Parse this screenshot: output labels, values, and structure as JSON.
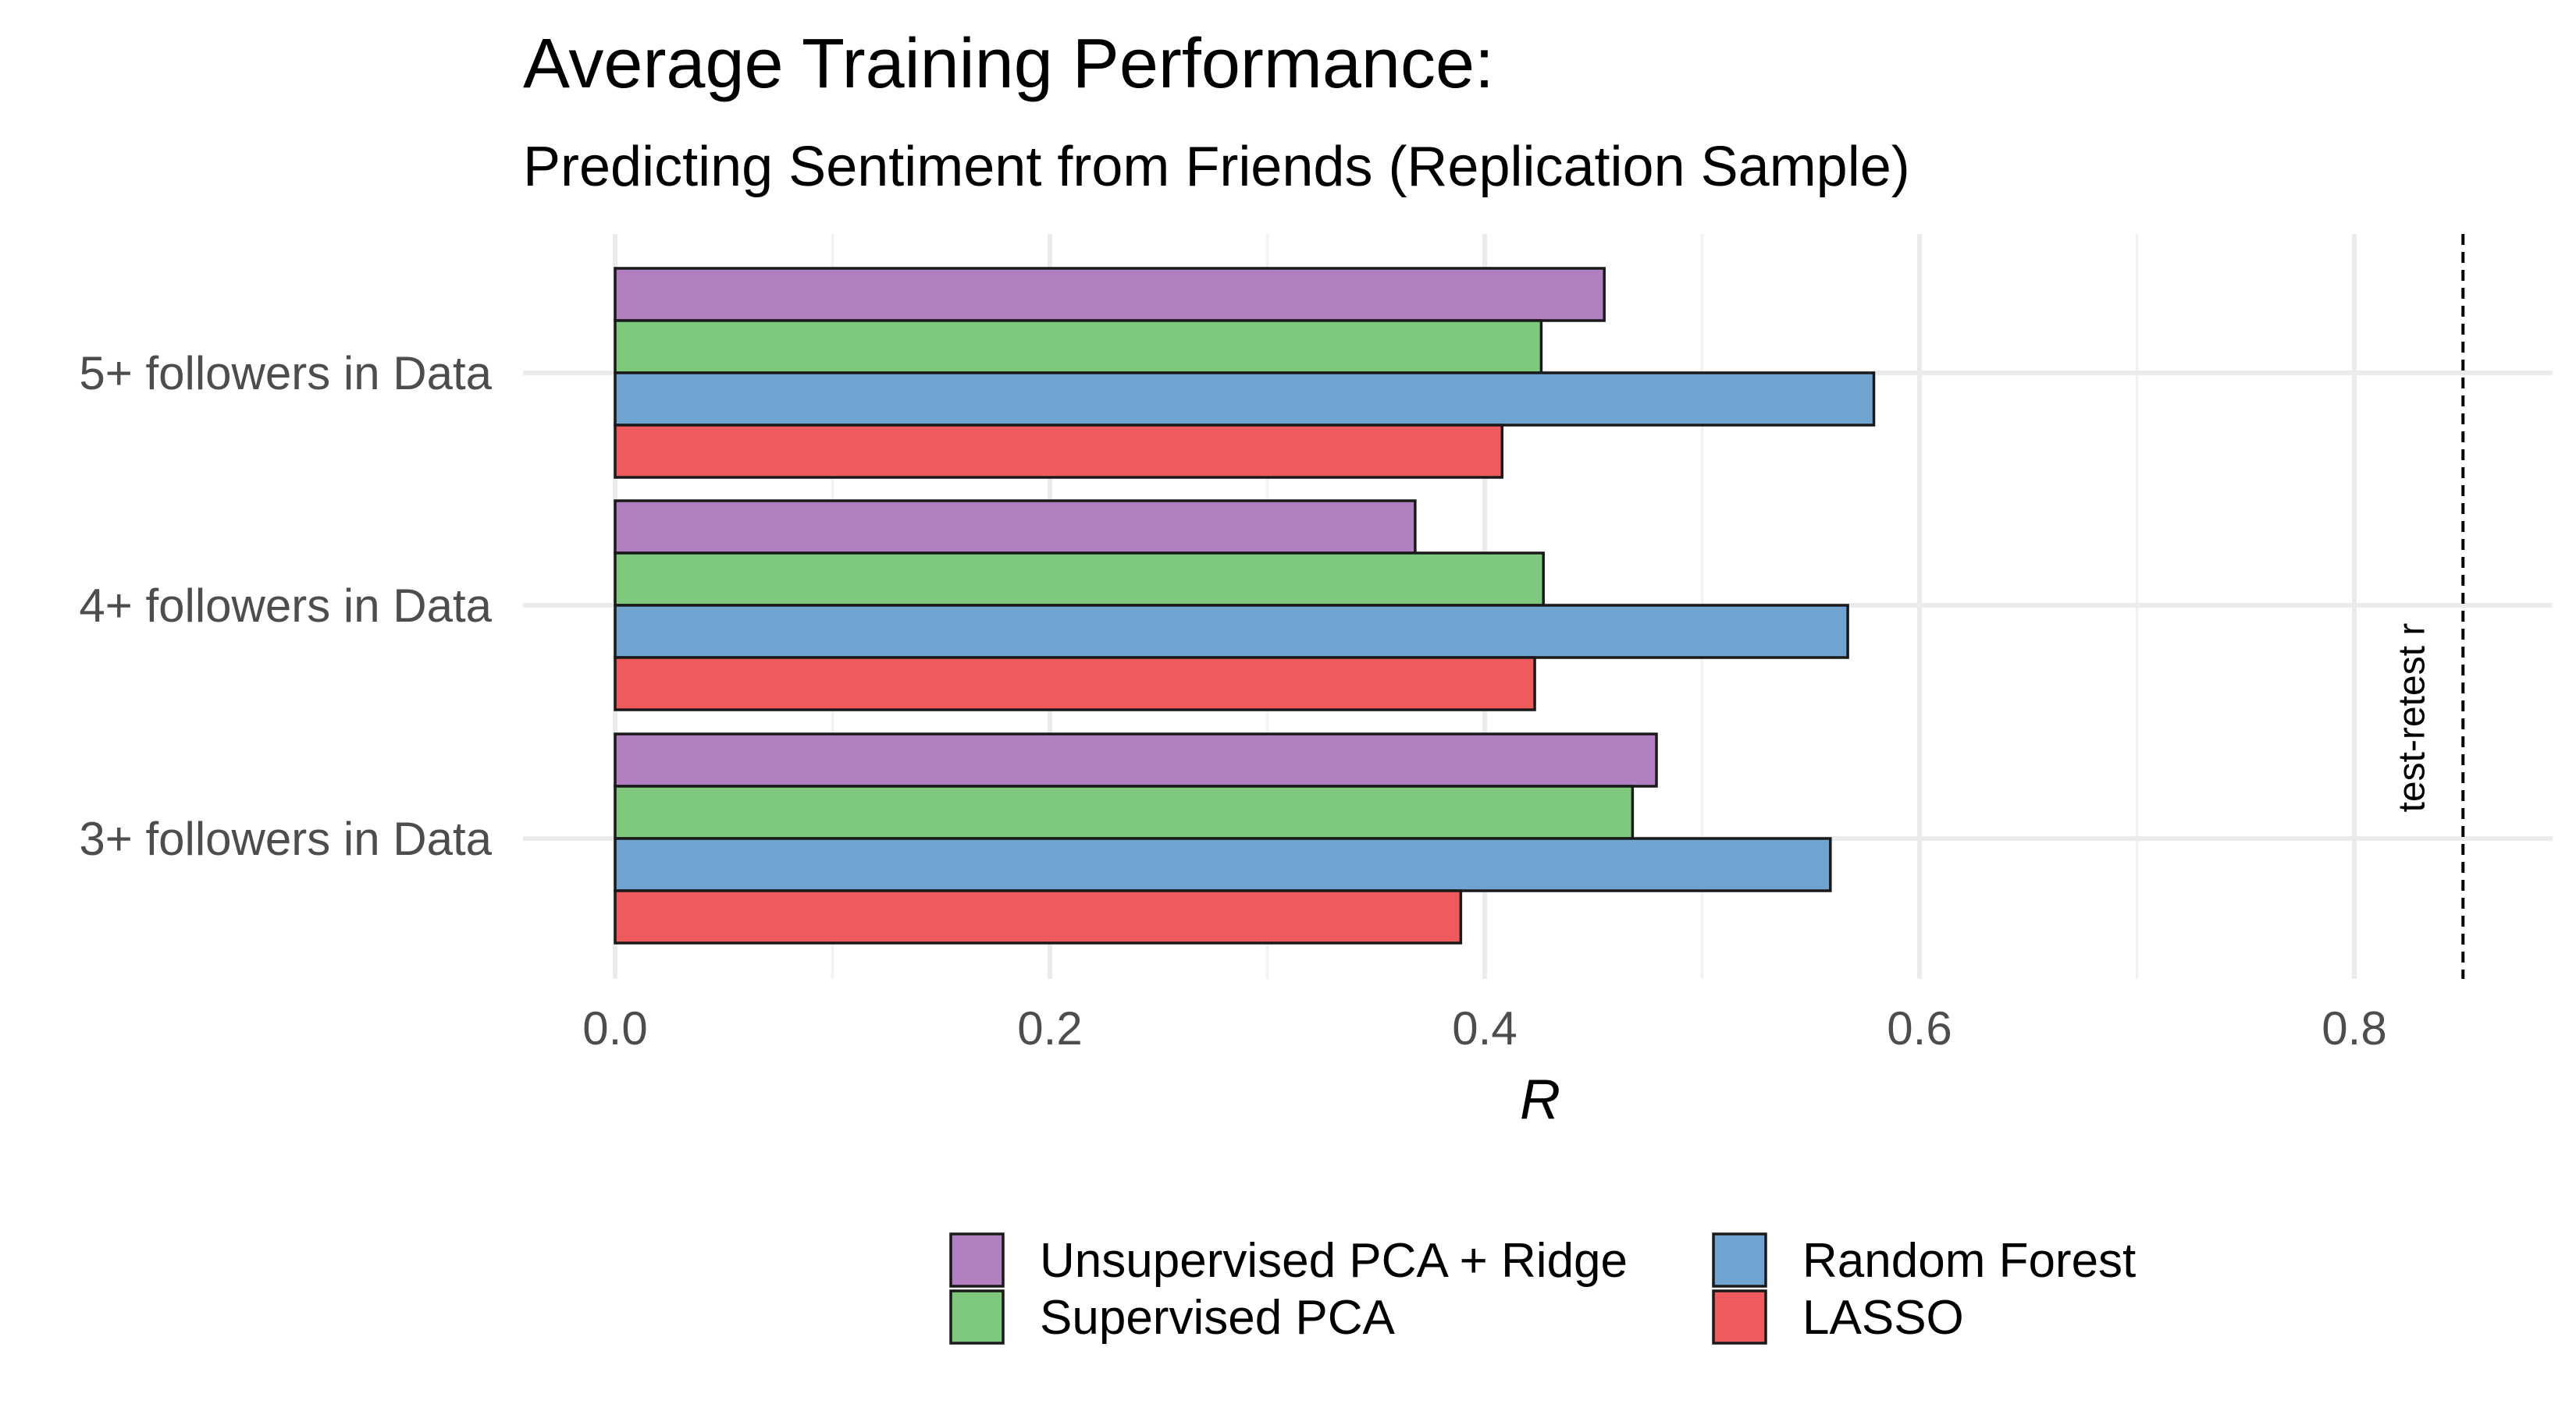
{
  "chart_data": {
    "type": "bar",
    "orientation": "horizontal",
    "title": "Average Training Performance:",
    "subtitle": "Predicting Sentiment from Friends (Replication Sample)",
    "xlabel": "R",
    "ylabel": "",
    "xlim": [
      0,
      0.89
    ],
    "x_ticks": [
      "0.0",
      "0.2",
      "0.4",
      "0.6",
      "0.8"
    ],
    "x_tick_values": [
      0,
      0.2,
      0.4,
      0.6,
      0.8
    ],
    "categories": [
      "5+ followers in Data",
      "4+ followers in Data",
      "3+ followers in Data"
    ],
    "series": [
      {
        "name": "Unsupervised PCA + Ridge",
        "color": "#b27fc0",
        "values": [
          0.455,
          0.368,
          0.479
        ]
      },
      {
        "name": "Supervised PCA",
        "color": "#7fc97f",
        "values": [
          0.426,
          0.427,
          0.468
        ]
      },
      {
        "name": "Random Forest",
        "color": "#6fa3d0",
        "values": [
          0.579,
          0.567,
          0.559
        ]
      },
      {
        "name": "LASSO",
        "color": "#ef5a5d",
        "values": [
          0.408,
          0.423,
          0.389
        ]
      }
    ],
    "reference_line": {
      "value": 0.85,
      "label": "test-retest r",
      "style": "dashed"
    },
    "grid": true,
    "legend_position": "bottom"
  }
}
